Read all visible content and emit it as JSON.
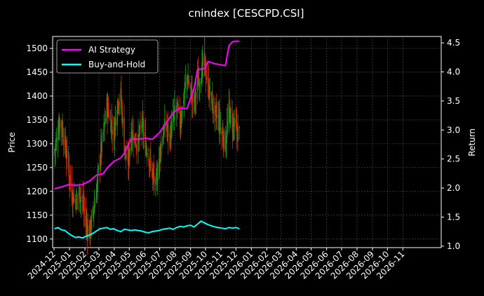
{
  "chart_data": {
    "type": "line",
    "title": "cnindex [CESCPD.CSI]",
    "xlabel": "",
    "ylabel_left": "Price",
    "ylabel_right": "Return",
    "x_tick_labels": [
      "2024-12",
      "2025-01",
      "2025-02",
      "2025-03",
      "2025-04",
      "2025-05",
      "2025-06",
      "2025-07",
      "2025-08",
      "2025-09",
      "2025-10",
      "2025-11",
      "2025-12",
      "2026-01",
      "2026-02",
      "2026-03",
      "2026-04",
      "2026-05",
      "2026-06",
      "2026-07",
      "2026-08",
      "2026-09",
      "2026-10",
      "2026-11"
    ],
    "y_left_ticks": [
      1100,
      1150,
      1200,
      1250,
      1300,
      1350,
      1400,
      1450,
      1500
    ],
    "y_right_ticks": [
      "1.0",
      "1.5",
      "2.0",
      "2.5",
      "3.0",
      "3.5",
      "4.0",
      "4.5"
    ],
    "ylim_left": [
      1082,
      1525
    ],
    "ylim_right": [
      0.975,
      4.61
    ],
    "x_range": [
      "2024-12-01",
      "2026-12-31"
    ],
    "grid": true,
    "legend_position": "top-left",
    "colors": {
      "background": "#000000",
      "grid": "#555555",
      "up_candle": "#1a9a1a",
      "down_candle": "#d42a00",
      "ai_strategy": "#ff00ff",
      "buy_and_hold": "#00ffff",
      "text": "#ffffff"
    },
    "price_series": {
      "name": "",
      "points": [
        [
          "2024-12-02",
          1285
        ],
        [
          "2024-12-06",
          1305
        ],
        [
          "2024-12-12",
          1350
        ],
        [
          "2024-12-18",
          1330
        ],
        [
          "2024-12-24",
          1290
        ],
        [
          "2024-12-30",
          1250
        ],
        [
          "2025-01-06",
          1195
        ],
        [
          "2025-01-13",
          1180
        ],
        [
          "2025-01-20",
          1200
        ],
        [
          "2025-01-27",
          1185
        ],
        [
          "2025-02-03",
          1130
        ],
        [
          "2025-02-10",
          1115
        ],
        [
          "2025-02-17",
          1150
        ],
        [
          "2025-02-24",
          1200
        ],
        [
          "2025-03-03",
          1270
        ],
        [
          "2025-03-10",
          1320
        ],
        [
          "2025-03-17",
          1380
        ],
        [
          "2025-03-24",
          1350
        ],
        [
          "2025-03-31",
          1320
        ],
        [
          "2025-04-07",
          1390
        ],
        [
          "2025-04-14",
          1400
        ],
        [
          "2025-04-21",
          1300
        ],
        [
          "2025-04-28",
          1250
        ],
        [
          "2025-05-05",
          1330
        ],
        [
          "2025-05-12",
          1310
        ],
        [
          "2025-05-19",
          1300
        ],
        [
          "2025-05-26",
          1345
        ],
        [
          "2025-06-02",
          1300
        ],
        [
          "2025-06-09",
          1275
        ],
        [
          "2025-06-16",
          1240
        ],
        [
          "2025-06-23",
          1210
        ],
        [
          "2025-06-30",
          1270
        ],
        [
          "2025-07-07",
          1320
        ],
        [
          "2025-07-14",
          1340
        ],
        [
          "2025-07-21",
          1310
        ],
        [
          "2025-07-28",
          1350
        ],
        [
          "2025-08-04",
          1380
        ],
        [
          "2025-08-11",
          1340
        ],
        [
          "2025-08-18",
          1400
        ],
        [
          "2025-08-25",
          1440
        ],
        [
          "2025-09-01",
          1410
        ],
        [
          "2025-09-08",
          1380
        ],
        [
          "2025-09-15",
          1430
        ],
        [
          "2025-09-22",
          1450
        ],
        [
          "2025-09-29",
          1470
        ],
        [
          "2025-10-06",
          1420
        ],
        [
          "2025-10-13",
          1390
        ],
        [
          "2025-10-20",
          1360
        ],
        [
          "2025-10-27",
          1350
        ],
        [
          "2025-11-03",
          1320
        ],
        [
          "2025-11-10",
          1300
        ],
        [
          "2025-11-17",
          1370
        ],
        [
          "2025-11-24",
          1340
        ],
        [
          "2025-12-01",
          1330
        ],
        [
          "2025-12-08",
          1320
        ]
      ]
    },
    "series": [
      {
        "name": "AI Strategy",
        "axis": "right",
        "points": [
          [
            "2024-12-02",
            1.99
          ],
          [
            "2024-12-16",
            2.02
          ],
          [
            "2024-12-30",
            2.06
          ],
          [
            "2025-01-13",
            2.05
          ],
          [
            "2025-01-27",
            2.06
          ],
          [
            "2025-02-10",
            2.12
          ],
          [
            "2025-02-24",
            2.22
          ],
          [
            "2025-03-10",
            2.25
          ],
          [
            "2025-03-17",
            2.34
          ],
          [
            "2025-03-31",
            2.46
          ],
          [
            "2025-04-14",
            2.52
          ],
          [
            "2025-04-21",
            2.6
          ],
          [
            "2025-05-05",
            2.85
          ],
          [
            "2025-05-19",
            2.84
          ],
          [
            "2025-06-02",
            2.86
          ],
          [
            "2025-06-16",
            2.84
          ],
          [
            "2025-06-30",
            2.95
          ],
          [
            "2025-07-14",
            3.12
          ],
          [
            "2025-07-28",
            3.3
          ],
          [
            "2025-08-11",
            3.38
          ],
          [
            "2025-08-25",
            3.37
          ],
          [
            "2025-09-08",
            3.72
          ],
          [
            "2025-09-15",
            4.04
          ],
          [
            "2025-09-29",
            4.06
          ],
          [
            "2025-10-06",
            4.18
          ],
          [
            "2025-10-20",
            4.14
          ],
          [
            "2025-11-03",
            4.12
          ],
          [
            "2025-11-10",
            4.11
          ],
          [
            "2025-11-17",
            4.45
          ],
          [
            "2025-11-24",
            4.52
          ],
          [
            "2025-12-08",
            4.53
          ]
        ]
      },
      {
        "name": "Buy-and-Hold",
        "axis": "right",
        "points": [
          [
            "2024-12-02",
            1.3
          ],
          [
            "2024-12-09",
            1.32
          ],
          [
            "2024-12-16",
            1.28
          ],
          [
            "2024-12-23",
            1.27
          ],
          [
            "2024-12-30",
            1.22
          ],
          [
            "2025-01-06",
            1.18
          ],
          [
            "2025-01-13",
            1.15
          ],
          [
            "2025-01-20",
            1.16
          ],
          [
            "2025-01-27",
            1.14
          ],
          [
            "2025-02-03",
            1.17
          ],
          [
            "2025-02-10",
            1.19
          ],
          [
            "2025-02-17",
            1.22
          ],
          [
            "2025-02-24",
            1.26
          ],
          [
            "2025-03-03",
            1.3
          ],
          [
            "2025-03-10",
            1.31
          ],
          [
            "2025-03-17",
            1.32
          ],
          [
            "2025-03-24",
            1.29
          ],
          [
            "2025-03-31",
            1.3
          ],
          [
            "2025-04-07",
            1.27
          ],
          [
            "2025-04-14",
            1.25
          ],
          [
            "2025-04-21",
            1.29
          ],
          [
            "2025-04-28",
            1.28
          ],
          [
            "2025-05-05",
            1.27
          ],
          [
            "2025-05-12",
            1.28
          ],
          [
            "2025-05-19",
            1.27
          ],
          [
            "2025-05-26",
            1.26
          ],
          [
            "2025-06-02",
            1.24
          ],
          [
            "2025-06-09",
            1.23
          ],
          [
            "2025-06-16",
            1.25
          ],
          [
            "2025-06-23",
            1.26
          ],
          [
            "2025-06-30",
            1.27
          ],
          [
            "2025-07-07",
            1.29
          ],
          [
            "2025-07-14",
            1.3
          ],
          [
            "2025-07-21",
            1.31
          ],
          [
            "2025-07-28",
            1.29
          ],
          [
            "2025-08-04",
            1.32
          ],
          [
            "2025-08-11",
            1.34
          ],
          [
            "2025-08-18",
            1.33
          ],
          [
            "2025-08-25",
            1.35
          ],
          [
            "2025-09-01",
            1.36
          ],
          [
            "2025-09-08",
            1.33
          ],
          [
            "2025-09-15",
            1.38
          ],
          [
            "2025-09-22",
            1.43
          ],
          [
            "2025-09-29",
            1.4
          ],
          [
            "2025-10-06",
            1.37
          ],
          [
            "2025-10-13",
            1.35
          ],
          [
            "2025-10-20",
            1.33
          ],
          [
            "2025-10-27",
            1.32
          ],
          [
            "2025-11-03",
            1.31
          ],
          [
            "2025-11-10",
            1.3
          ],
          [
            "2025-11-17",
            1.32
          ],
          [
            "2025-11-24",
            1.31
          ],
          [
            "2025-12-01",
            1.32
          ],
          [
            "2025-12-08",
            1.3
          ]
        ]
      }
    ]
  }
}
